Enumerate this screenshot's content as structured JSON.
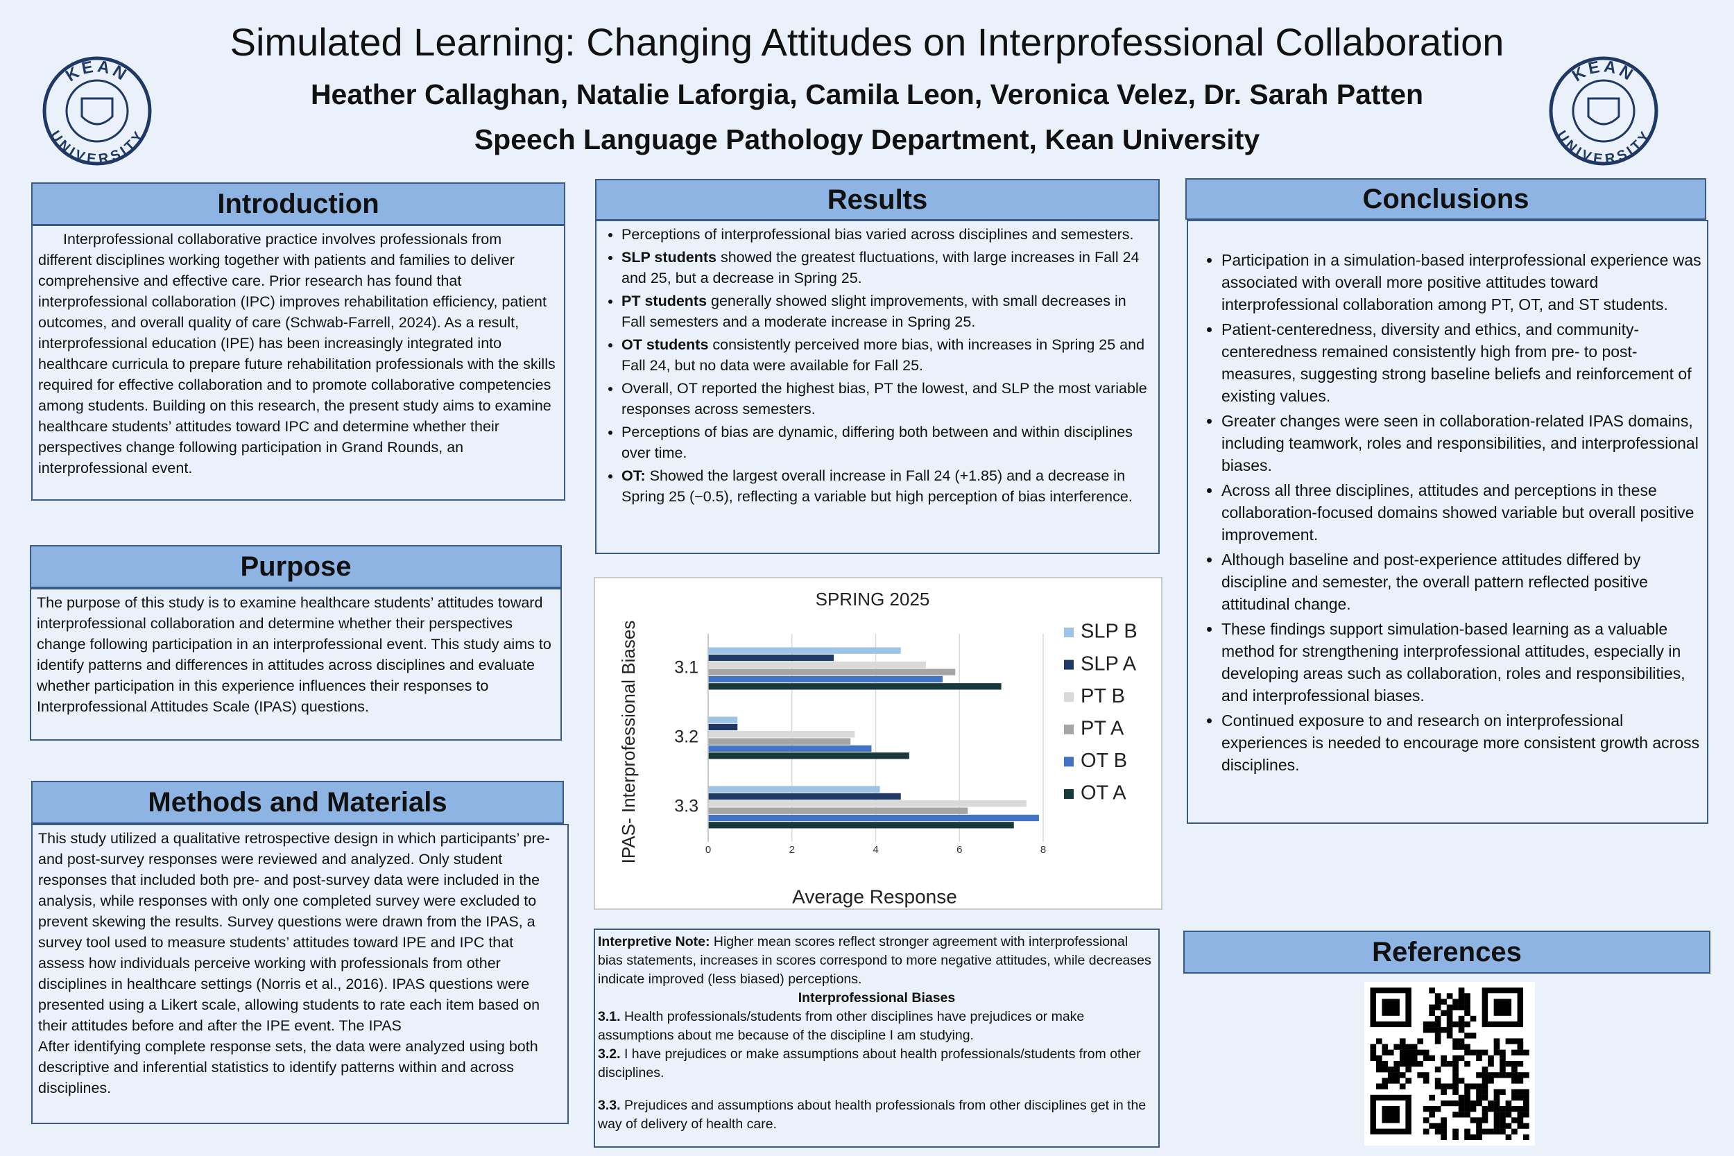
{
  "header": {
    "title": "Simulated Learning: Changing Attitudes on Interprofessional Collaboration",
    "authors": "Heather Callaghan, Natalie Laforgia, Camila Leon, Veronica Velez, Dr. Sarah Patten",
    "department": "Speech Language Pathology Department, Kean University",
    "logo_top": "KEAN",
    "logo_bottom": "UNIVERSITY"
  },
  "introduction": {
    "heading": "Introduction",
    "text": "Interprofessional collaborative practice involves professionals from different disciplines working together with patients and families to deliver comprehensive and effective care. Prior research has found that interprofessional collaboration (IPC) improves rehabilitation efficiency, patient outcomes, and overall quality of care (Schwab-Farrell, 2024). As a result, interprofessional education (IPE) has been increasingly integrated into healthcare curricula to prepare future rehabilitation professionals with the skills required for effective collaboration and to promote collaborative competencies among students. Building on this research, the present study aims to examine healthcare students’ attitudes toward IPC and determine whether their perspectives change following participation in Grand Rounds, an interprofessional event."
  },
  "purpose": {
    "heading": "Purpose",
    "text": "The purpose of this study is to examine healthcare students’ attitudes toward interprofessional collaboration and determine whether their perspectives change following participation in an interprofessional event. This study aims to identify patterns and differences in attitudes across disciplines and evaluate whether participation in this experience influences their responses to Interprofessional Attitudes Scale (IPAS) questions."
  },
  "methods": {
    "heading": "Methods and Materials",
    "paragraphs": [
      "This study utilized a qualitative retrospective design in which participants’ pre- and post-survey responses were reviewed and analyzed. Only student responses that included both pre- and post-survey data were included in the analysis, while responses with only one completed survey were excluded to prevent skewing the results. Survey questions were drawn from the IPAS, a survey tool used to measure students’ attitudes toward IPE and IPC that assess how individuals perceive working with professionals from other disciplines in healthcare settings (Norris et al., 2016). IPAS questions were presented using a Likert scale, allowing students to rate each item based on their attitudes before and after the IPE event. The IPAS",
      "After identifying complete response sets, the data were analyzed using both descriptive and inferential statistics to identify patterns within and across disciplines."
    ]
  },
  "results": {
    "heading": "Results",
    "bullets": [
      {
        "bold": "",
        "text": "Perceptions of interprofessional bias varied across disciplines and semesters."
      },
      {
        "bold": "SLP students",
        "text": " showed the greatest fluctuations, with large increases in Fall 24 and 25, but a decrease in Spring 25."
      },
      {
        "bold": "PT students",
        "text": " generally showed slight improvements, with small decreases in Fall semesters and a moderate increase in Spring 25."
      },
      {
        "bold": "OT students",
        "text": " consistently perceived more bias, with increases in Spring 25 and Fall 24, but no data were available for Fall 25."
      },
      {
        "bold": "",
        "text": "Overall, OT reported the highest bias, PT the lowest, and SLP the most variable responses across semesters."
      },
      {
        "bold": "",
        "text": "Perceptions of bias are dynamic, differing both between and within disciplines over time."
      },
      {
        "bold": "OT:",
        "text": " Showed the largest overall increase in Fall 24 (+1.85) and a decrease in Spring 25 (−0.5), reflecting a variable but high perception of bias interference."
      }
    ]
  },
  "chart_data": {
    "type": "bar",
    "orientation": "horizontal",
    "title": "SPRING 2025",
    "xlabel": "Average Response",
    "ylabel": "IPAS- Interprofessional Biases",
    "categories": [
      "3.1",
      "3.2",
      "3.3"
    ],
    "series": [
      {
        "name": "SLP B",
        "color": "#9dc3e6",
        "values": [
          4.6,
          0.7,
          4.1
        ]
      },
      {
        "name": "SLP A",
        "color": "#1f3864",
        "values": [
          3.0,
          0.7,
          4.6
        ]
      },
      {
        "name": "PT B",
        "color": "#d9d9d9",
        "values": [
          5.2,
          3.5,
          7.6
        ]
      },
      {
        "name": "PT A",
        "color": "#a5a5a5",
        "values": [
          5.9,
          3.4,
          6.2
        ]
      },
      {
        "name": "OT B",
        "color": "#4472c4",
        "values": [
          5.6,
          3.9,
          7.9
        ]
      },
      {
        "name": "OT A",
        "color": "#17393b",
        "values": [
          7.0,
          4.8,
          7.3
        ]
      }
    ],
    "xlim": [
      0,
      8
    ],
    "xticks": [
      0,
      2,
      4,
      6,
      8
    ],
    "grid": true,
    "legend": "right"
  },
  "note": {
    "lead": "Interpretive Note:",
    "text": " Higher mean scores reflect stronger agreement with interprofessional bias statements, increases in scores correspond to more negative attitudes, while decreases indicate improved (less biased) perceptions.",
    "subheading": "Interprofessional Biases",
    "items": [
      {
        "num": "3.1.",
        "text": " Health professionals/students from other disciplines have prejudices or make assumptions about me because of the discipline I am studying."
      },
      {
        "num": "3.2.",
        "text": " I have prejudices or make assumptions about health professionals/students from other disciplines."
      },
      {
        "num": "3.3.",
        "text": " Prejudices and assumptions about health professionals from other disciplines get in the way of delivery of health care."
      }
    ]
  },
  "conclusions": {
    "heading": "Conclusions",
    "bullets": [
      "Participation in a simulation-based interprofessional experience was associated with overall more positive attitudes toward interprofessional collaboration among PT, OT, and ST students.",
      "Patient-centeredness, diversity and ethics, and community-centeredness remained consistently high from pre- to post-measures, suggesting strong baseline beliefs and reinforcement of existing values.",
      "Greater changes were seen in collaboration-related IPAS domains, including teamwork, roles and responsibilities, and interprofessional biases.",
      "Across all three disciplines, attitudes and perceptions in these collaboration-focused domains showed variable but overall positive improvement.",
      "Although baseline and post-experience attitudes differed by discipline and semester, the overall pattern reflected positive attitudinal change.",
      "These findings support simulation-based learning as a valuable method for strengthening interprofessional attitudes, especially in developing areas such as collaboration, roles and responsibilities, and interprofessional biases.",
      "Continued exposure to and research on interprofessional experiences is needed to encourage more consistent growth across disciplines."
    ]
  },
  "references": {
    "heading": "References"
  }
}
